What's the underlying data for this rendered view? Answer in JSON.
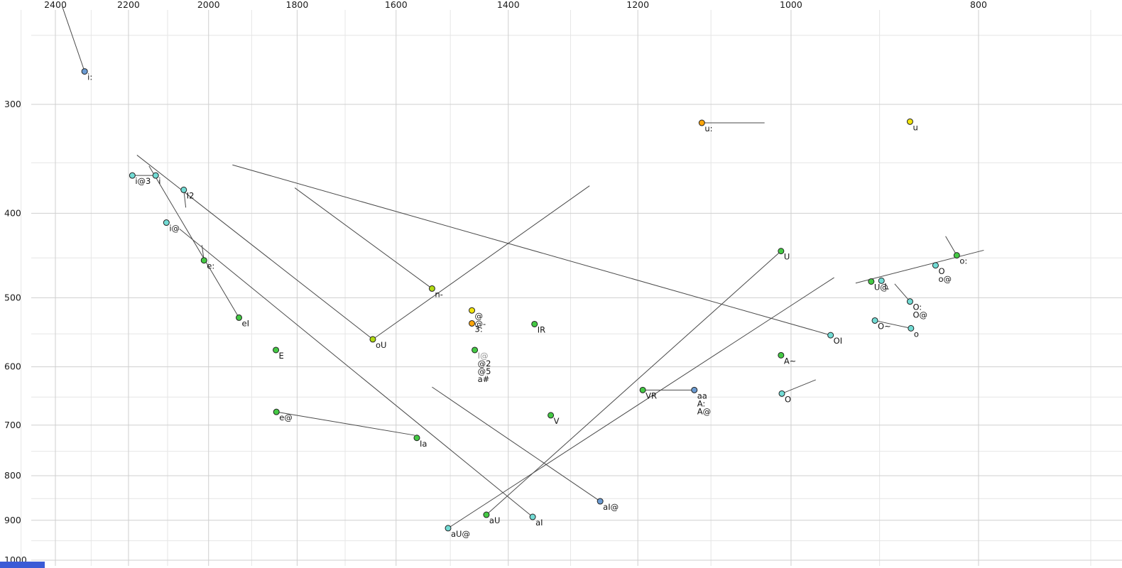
{
  "chart_data": {
    "type": "scatter",
    "title": "",
    "xlabel": "",
    "ylabel": "",
    "x_axis": {
      "orientation": "top",
      "reversed": true,
      "scale": "log",
      "ticks": [
        2400,
        2200,
        2000,
        1800,
        1600,
        1400,
        1200,
        1000,
        800
      ],
      "minor_step": 100,
      "min": 700,
      "max": 2500
    },
    "y_axis": {
      "orientation": "left",
      "scale": "log",
      "ticks": [
        300,
        400,
        500,
        600,
        700,
        800,
        900,
        1000
      ],
      "minor_step": 50,
      "min": 250,
      "max": 1000
    },
    "grid": true,
    "legend": false,
    "palette": {
      "blue": "#6b9bd2",
      "cyan": "#72dbd4",
      "green": "#44c944",
      "yellowgreen": "#b0d912",
      "yellow": "#f2e40c",
      "orange": "#ffa50a"
    },
    "colors": {
      "grid_major": "#cfcfcf",
      "grid_minor": "#e6e6e6",
      "segment": "#4a4a4a",
      "point_stroke": "#222222",
      "label": "#141414",
      "label_muted": "#919191",
      "axis_text": "#1a1a1a",
      "corner_accent": "#3b5bd6"
    },
    "points": [
      {
        "labels": [
          "i:"
        ],
        "f2": 2318,
        "f1": 275,
        "color": "blue"
      },
      {
        "labels": [
          "u:"
        ],
        "f2": 1112,
        "f1": 315,
        "color": "orange"
      },
      {
        "labels": [
          "u"
        ],
        "f2": 868,
        "f1": 314,
        "color": "yellow"
      },
      {
        "labels": [
          "i@3"
        ],
        "f2": 2190,
        "f1": 362,
        "color": "cyan"
      },
      {
        "labels": [
          "i"
        ],
        "f2": 2130,
        "f1": 362,
        "color": "cyan"
      },
      {
        "labels": [
          "I2"
        ],
        "f2": 2060,
        "f1": 376,
        "color": "cyan"
      },
      {
        "labels": [
          "i@"
        ],
        "f2": 2103,
        "f1": 410,
        "color": "cyan"
      },
      {
        "labels": [
          "e:"
        ],
        "f2": 2011,
        "f1": 453,
        "color": "green"
      },
      {
        "labels": [
          "eI"
        ],
        "f2": 1929,
        "f1": 527,
        "color": "green"
      },
      {
        "labels": [
          "E"
        ],
        "f2": 1846,
        "f1": 574,
        "color": "green"
      },
      {
        "labels": [
          "e@"
        ],
        "f2": 1845,
        "f1": 676,
        "color": "green"
      },
      {
        "labels": [
          "Ia"
        ],
        "f2": 1561,
        "f1": 724,
        "color": "green"
      },
      {
        "labels": [
          "oU"
        ],
        "f2": 1645,
        "f1": 558,
        "color": "yellowgreen"
      },
      {
        "labels": [
          "n-"
        ],
        "f2": 1533,
        "f1": 488,
        "color": "yellowgreen"
      },
      {
        "labels": [
          "@",
          "@-"
        ],
        "f2": 1462,
        "f1": 517,
        "color": "yellow"
      },
      {
        "labels": [
          "3:"
        ],
        "f2": 1462,
        "f1": 535,
        "color": "orange"
      },
      {
        "labels": [
          {
            "text": "I@",
            "muted": true
          },
          "@2",
          "@5",
          "a#"
        ],
        "f2": 1457,
        "f1": 574,
        "color": "green"
      },
      {
        "labels": [
          "IR"
        ],
        "f2": 1357,
        "f1": 536,
        "color": "green"
      },
      {
        "labels": [
          "V"
        ],
        "f2": 1331,
        "f1": 682,
        "color": "green"
      },
      {
        "labels": [
          "VR"
        ],
        "f2": 1193,
        "f1": 638,
        "color": "green"
      },
      {
        "labels": [
          "aa",
          "A:",
          "A@"
        ],
        "f2": 1122,
        "f1": 638,
        "color": "blue"
      },
      {
        "labels": [
          "A~"
        ],
        "f2": 1012,
        "f1": 582,
        "color": "green"
      },
      {
        "labels": [
          "O"
        ],
        "f2": 1011,
        "f1": 644,
        "color": "cyan"
      },
      {
        "labels": [
          "OI"
        ],
        "f2": 954,
        "f1": 552,
        "color": "cyan"
      },
      {
        "labels": [
          "O~"
        ],
        "f2": 905,
        "f1": 531,
        "color": "cyan"
      },
      {
        "labels": [
          "o"
        ],
        "f2": 867,
        "f1": 542,
        "color": "cyan"
      },
      {
        "labels": [
          "O:",
          "O@"
        ],
        "f2": 868,
        "f1": 505,
        "color": "cyan"
      },
      {
        "labels": [
          "U@"
        ],
        "f2": 909,
        "f1": 479,
        "color": "green"
      },
      {
        "labels": [
          "L"
        ],
        "f2": 898,
        "f1": 478,
        "color": "cyan"
      },
      {
        "labels": [
          "O",
          "o@"
        ],
        "f2": 842,
        "f1": 459,
        "color": "cyan"
      },
      {
        "labels": [
          "o:"
        ],
        "f2": 821,
        "f1": 447,
        "color": "green"
      },
      {
        "labels": [
          "U"
        ],
        "f2": 1012,
        "f1": 442,
        "color": "green"
      },
      {
        "labels": [
          "aI@"
        ],
        "f2": 1255,
        "f1": 856,
        "color": "blue"
      },
      {
        "labels": [
          "aU"
        ],
        "f2": 1437,
        "f1": 887,
        "color": "green"
      },
      {
        "labels": [
          "aI"
        ],
        "f2": 1360,
        "f1": 892,
        "color": "cyan"
      },
      {
        "labels": [
          "aU@"
        ],
        "f2": 1504,
        "f1": 919,
        "color": "cyan"
      }
    ],
    "segments": [
      {
        "name": "i-colon-stem",
        "from": [
          2380,
          232
        ],
        "to": [
          2318,
          275
        ]
      },
      {
        "name": "u-colon-tail",
        "from": [
          1112,
          315
        ],
        "to": [
          1032,
          315
        ]
      },
      {
        "name": "i-at-3-link",
        "from": [
          2190,
          362
        ],
        "to": [
          2130,
          362
        ]
      },
      {
        "name": "I2-tick",
        "from": [
          2060,
          376
        ],
        "to": [
          2055,
          394
        ]
      },
      {
        "name": "e-colon-tick",
        "from": [
          2011,
          453
        ],
        "to": [
          2016,
          435
        ]
      },
      {
        "name": "eI-glide",
        "from": [
          1929,
          527
        ],
        "to": [
          2147,
          353
        ]
      },
      {
        "name": "aI-glide",
        "from": [
          1360,
          892
        ],
        "to": [
          2070,
          417
        ]
      },
      {
        "name": "oU-offglide",
        "from": [
          1645,
          558
        ],
        "to": [
          1271,
          372
        ]
      },
      {
        "name": "oU-onglide",
        "from": [
          2178,
          343
        ],
        "to": [
          1645,
          558
        ]
      },
      {
        "name": "n-glide",
        "from": [
          1533,
          488
        ],
        "to": [
          1805,
          374
        ]
      },
      {
        "name": "OI-glide",
        "from": [
          954,
          552
        ],
        "to": [
          1944,
          352
        ]
      },
      {
        "name": "aU-glide",
        "from": [
          1437,
          887
        ],
        "to": [
          1012,
          442
        ]
      },
      {
        "name": "VR-aa-link",
        "from": [
          1193,
          638
        ],
        "to": [
          1122,
          638
        ]
      },
      {
        "name": "O-tick",
        "from": [
          1011,
          644
        ],
        "to": [
          971,
          621
        ]
      },
      {
        "name": "O-tilde-o-link",
        "from": [
          905,
          531
        ],
        "to": [
          867,
          542
        ]
      },
      {
        "name": "O-colon-tick",
        "from": [
          868,
          505
        ],
        "to": [
          884,
          482
        ]
      },
      {
        "name": "U-at-o-colon-line",
        "from": [
          926,
          481
        ],
        "to": [
          795,
          441
        ]
      },
      {
        "name": "o-colon-tick",
        "from": [
          832,
          425
        ],
        "to": [
          821,
          447
        ]
      },
      {
        "name": "aI-at-glide",
        "from": [
          1255,
          856
        ],
        "to": [
          1533,
          633
        ]
      },
      {
        "name": "aU-at-glide",
        "from": [
          1504,
          919
        ],
        "to": [
          950,
          474
        ]
      },
      {
        "name": "e-at-Ia-link",
        "from": [
          1845,
          676
        ],
        "to": [
          1565,
          719
        ]
      }
    ]
  }
}
